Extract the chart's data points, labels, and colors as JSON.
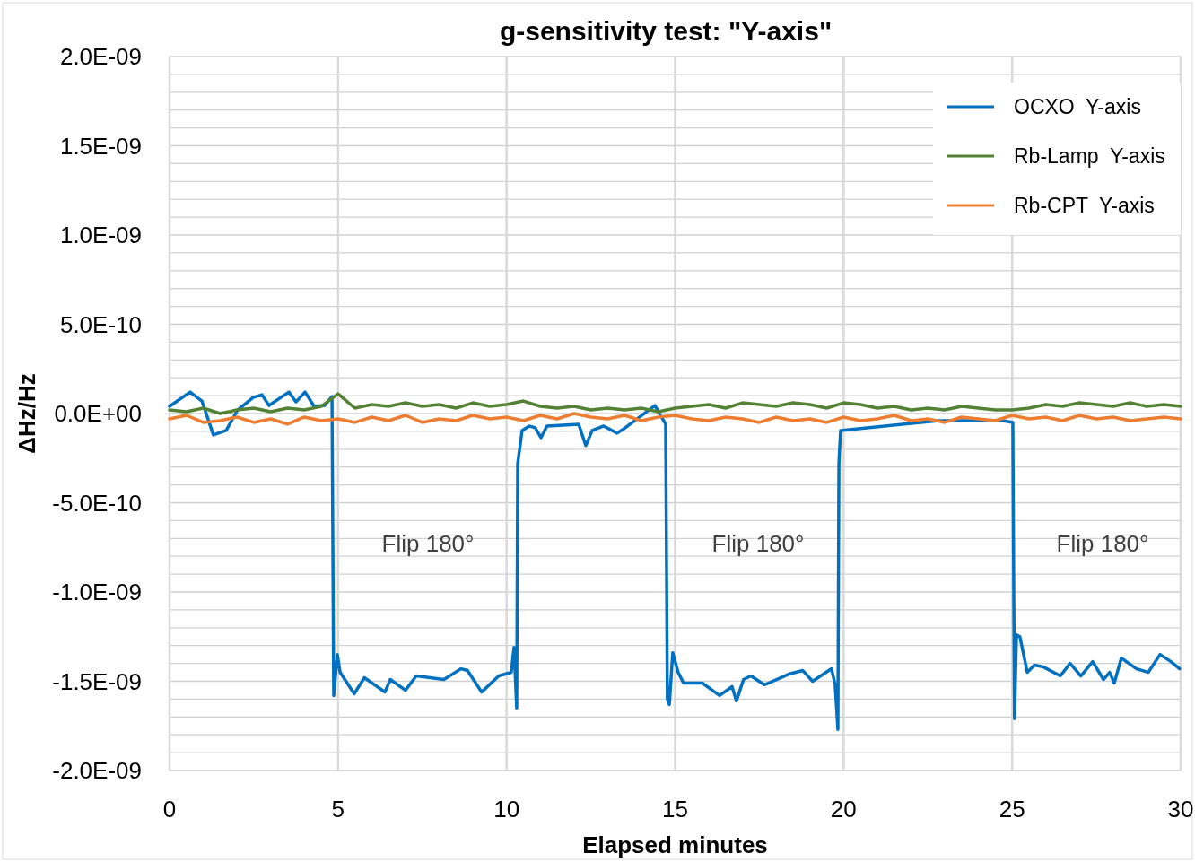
{
  "chart_data": {
    "type": "line",
    "title": "g-sensitivity test: \"Y-axis\"",
    "xlabel": "Elapsed minutes",
    "ylabel": "ΔHz/Hz",
    "xlim": [
      0,
      30
    ],
    "xticks": [
      0,
      5,
      10,
      15,
      20,
      25,
      30
    ],
    "ylim": [
      -2e-09,
      2e-09
    ],
    "yticks": [
      {
        "value": -2e-09,
        "label": "-2.0E-09"
      },
      {
        "value": -1.9e-09,
        "label": null
      },
      {
        "value": -1.8e-09,
        "label": null
      },
      {
        "value": -1.7e-09,
        "label": null
      },
      {
        "value": -1.6e-09,
        "label": null
      },
      {
        "value": -1.5e-09,
        "label": "-1.5E-09"
      },
      {
        "value": -1.4e-09,
        "label": null
      },
      {
        "value": -1.3e-09,
        "label": null
      },
      {
        "value": -1.2e-09,
        "label": null
      },
      {
        "value": -1.1e-09,
        "label": null
      },
      {
        "value": -1e-09,
        "label": "-1.0E-09"
      },
      {
        "value": -9e-10,
        "label": null
      },
      {
        "value": -8e-10,
        "label": null
      },
      {
        "value": -7e-10,
        "label": null
      },
      {
        "value": -6e-10,
        "label": null
      },
      {
        "value": -5e-10,
        "label": "-5.0E-10"
      },
      {
        "value": -4e-10,
        "label": null
      },
      {
        "value": -3e-10,
        "label": null
      },
      {
        "value": -2e-10,
        "label": null
      },
      {
        "value": -1e-10,
        "label": null
      },
      {
        "value": 0,
        "label": "0.0E+00"
      },
      {
        "value": 1e-10,
        "label": null
      },
      {
        "value": 2e-10,
        "label": null
      },
      {
        "value": 3e-10,
        "label": null
      },
      {
        "value": 4e-10,
        "label": null
      },
      {
        "value": 5e-10,
        "label": "5.0E-10"
      },
      {
        "value": 6e-10,
        "label": null
      },
      {
        "value": 7e-10,
        "label": null
      },
      {
        "value": 8e-10,
        "label": null
      },
      {
        "value": 9e-10,
        "label": null
      },
      {
        "value": 1e-09,
        "label": "1.0E-09"
      },
      {
        "value": 1.1e-09,
        "label": null
      },
      {
        "value": 1.2e-09,
        "label": null
      },
      {
        "value": 1.3e-09,
        "label": null
      },
      {
        "value": 1.4e-09,
        "label": null
      },
      {
        "value": 1.5e-09,
        "label": "1.5E-09"
      },
      {
        "value": 1.6e-09,
        "label": null
      },
      {
        "value": 1.7e-09,
        "label": null
      },
      {
        "value": 1.8e-09,
        "label": null
      },
      {
        "value": 1.9e-09,
        "label": null
      },
      {
        "value": 2e-09,
        "label": "2.0E-09"
      }
    ],
    "grid": true,
    "legend": "top right",
    "marker": "none",
    "line_style": "solid",
    "annotations": [
      "Flip 180°",
      "Flip 180°",
      "Flip 180°"
    ],
    "series": [
      {
        "name": "OCXO  Y-axis",
        "color": "#0070c0",
        "x": [
          0,
          0.61,
          0.96,
          1.3,
          1.68,
          2.02,
          2.48,
          2.74,
          2.95,
          3.54,
          3.75,
          4.02,
          4.29,
          4.6,
          4.82,
          4.87,
          4.98,
          5.06,
          5.48,
          5.78,
          6.39,
          6.55,
          7.0,
          7.32,
          8.14,
          8.65,
          8.84,
          9.26,
          9.77,
          10.14,
          10.22,
          10.3,
          10.33,
          10.46,
          10.67,
          10.85,
          11.02,
          11.2,
          12.14,
          12.35,
          12.54,
          12.88,
          13.28,
          13.52,
          14.4,
          14.72,
          14.77,
          14.83,
          14.93,
          15.09,
          15.25,
          15.81,
          16.32,
          16.69,
          16.82,
          17.03,
          17.25,
          17.65,
          18.37,
          18.79,
          19.08,
          19.64,
          19.75,
          19.83,
          19.86,
          19.91,
          22.84,
          23.8,
          24.73,
          25.02,
          25.07,
          25.13,
          25.23,
          25.45,
          25.66,
          25.93,
          26.43,
          26.72,
          27.04,
          27.39,
          27.71,
          27.89,
          28.03,
          28.24,
          28.69,
          29.04,
          29.39,
          29.71,
          29.97
        ],
        "values": [
          4e-11,
          1.2e-10,
          7e-11,
          -1.2e-10,
          -9.5e-11,
          2e-11,
          9e-11,
          1.05e-10,
          4.5e-11,
          1.2e-10,
          6.5e-11,
          1.2e-10,
          4e-11,
          4.5e-11,
          9.5e-11,
          -1.58e-09,
          -1.35e-09,
          -1.45e-09,
          -1.57e-09,
          -1.48e-09,
          -1.56e-09,
          -1.49e-09,
          -1.55e-09,
          -1.47e-09,
          -1.49e-09,
          -1.43e-09,
          -1.44e-09,
          -1.56e-09,
          -1.47e-09,
          -1.45e-09,
          -1.31e-09,
          -1.65e-09,
          -2.8e-10,
          -9.5e-11,
          -7e-11,
          -8e-11,
          -1.35e-10,
          -7e-11,
          -6e-11,
          -1.8e-10,
          -9.5e-11,
          -7e-11,
          -1.1e-10,
          -8e-11,
          4.5e-11,
          -6e-11,
          -1.6e-09,
          -1.63e-09,
          -1.34e-09,
          -1.45e-09,
          -1.51e-09,
          -1.51e-09,
          -1.58e-09,
          -1.53e-09,
          -1.61e-09,
          -1.49e-09,
          -1.47e-09,
          -1.52e-09,
          -1.46e-09,
          -1.44e-09,
          -1.5e-09,
          -1.43e-09,
          -1.52e-09,
          -1.77e-09,
          -2.8e-10,
          -9.5e-11,
          -4e-11,
          -4e-11,
          -4e-11,
          -5e-11,
          -1.71e-09,
          -1.24e-09,
          -1.25e-09,
          -1.45e-09,
          -1.41e-09,
          -1.42e-09,
          -1.47e-09,
          -1.4e-09,
          -1.47e-09,
          -1.39e-09,
          -1.49e-09,
          -1.45e-09,
          -1.51e-09,
          -1.37e-09,
          -1.43e-09,
          -1.45e-09,
          -1.35e-09,
          -1.39e-09,
          -1.43e-09
        ]
      },
      {
        "name": "Rb-Lamp  Y-axis",
        "color": "#548235",
        "x": [
          0,
          0.5,
          1,
          1.5,
          2,
          2.5,
          3,
          3.5,
          4,
          4.5,
          5,
          5.5,
          6,
          6.5,
          7,
          7.5,
          8,
          8.5,
          9,
          9.5,
          10,
          10.5,
          11,
          11.5,
          12,
          12.5,
          13,
          13.5,
          14,
          14.5,
          15,
          15.5,
          16,
          16.5,
          17,
          17.5,
          18,
          18.5,
          19,
          19.5,
          20,
          20.5,
          21,
          21.5,
          22,
          22.5,
          23,
          23.5,
          24,
          24.5,
          25,
          25.5,
          26,
          26.5,
          27,
          27.5,
          28,
          28.5,
          29,
          29.5,
          30
        ],
        "values": [
          2e-11,
          1e-11,
          3e-11,
          0,
          2e-11,
          3e-11,
          1e-11,
          3e-11,
          2e-11,
          4e-11,
          1.1e-10,
          3e-11,
          5e-11,
          4e-11,
          6e-11,
          4e-11,
          5e-11,
          3e-11,
          6e-11,
          4e-11,
          5e-11,
          7e-11,
          4e-11,
          3e-11,
          4e-11,
          2e-11,
          3e-11,
          2e-11,
          3e-11,
          1e-11,
          3e-11,
          4e-11,
          5e-11,
          3e-11,
          6e-11,
          5e-11,
          4e-11,
          6e-11,
          5e-11,
          3e-11,
          6e-11,
          5e-11,
          3e-11,
          4e-11,
          2e-11,
          3e-11,
          2e-11,
          4e-11,
          3e-11,
          2e-11,
          2e-11,
          3e-11,
          5e-11,
          4e-11,
          6e-11,
          5e-11,
          4e-11,
          6e-11,
          4e-11,
          5e-11,
          4e-11
        ]
      },
      {
        "name": "Rb-CPT  Y-axis",
        "color": "#ed7d31",
        "x": [
          0,
          0.5,
          1,
          1.5,
          2,
          2.5,
          3,
          3.5,
          4,
          4.5,
          5,
          5.5,
          6,
          6.5,
          7,
          7.5,
          8,
          8.5,
          9,
          9.5,
          10,
          10.5,
          11,
          11.5,
          12,
          12.5,
          13,
          13.5,
          14,
          14.5,
          15,
          15.5,
          16,
          16.5,
          17,
          17.5,
          18,
          18.5,
          19,
          19.5,
          20,
          20.5,
          21,
          21.5,
          22,
          22.5,
          23,
          23.5,
          24,
          24.5,
          25,
          25.5,
          26,
          26.5,
          27,
          27.5,
          28,
          28.5,
          29,
          29.5,
          30
        ],
        "values": [
          -3e-11,
          -1e-11,
          -5e-11,
          -4e-11,
          -2e-11,
          -5e-11,
          -3e-11,
          -6e-11,
          -2e-11,
          -4e-11,
          -3e-11,
          -5e-11,
          -2e-11,
          -4e-11,
          -1e-11,
          -5e-11,
          -3e-11,
          -4e-11,
          -1e-11,
          -3e-11,
          -2e-11,
          -4e-11,
          -1e-11,
          -3e-11,
          0,
          -2e-11,
          -3e-11,
          -1e-11,
          -4e-11,
          -2e-11,
          -1e-11,
          -3e-11,
          -4e-11,
          -2e-11,
          -3e-11,
          -5e-11,
          -2e-11,
          -4e-11,
          -3e-11,
          -5e-11,
          -2e-11,
          -4e-11,
          -3e-11,
          -1e-11,
          -4e-11,
          -3e-11,
          -5e-11,
          -2e-11,
          -3e-11,
          -4e-11,
          -1e-11,
          -3e-11,
          -2e-11,
          -4e-11,
          -1e-11,
          -3e-11,
          -2e-11,
          -4e-11,
          -3e-11,
          -2e-11,
          -3e-11
        ]
      }
    ]
  }
}
